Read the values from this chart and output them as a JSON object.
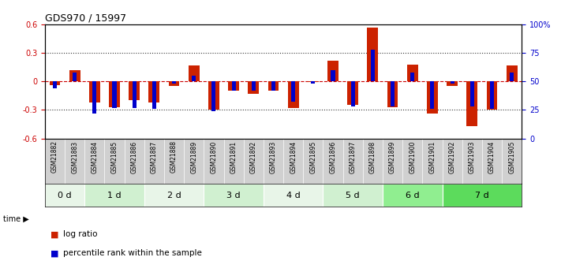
{
  "title": "GDS970 / 15997",
  "samples": [
    "GSM21882",
    "GSM21883",
    "GSM21884",
    "GSM21885",
    "GSM21886",
    "GSM21887",
    "GSM21888",
    "GSM21889",
    "GSM21890",
    "GSM21891",
    "GSM21892",
    "GSM21893",
    "GSM21894",
    "GSM21895",
    "GSM21896",
    "GSM21897",
    "GSM21898",
    "GSM21899",
    "GSM21900",
    "GSM21901",
    "GSM21902",
    "GSM21903",
    "GSM21904",
    "GSM21905"
  ],
  "log_ratio": [
    -0.04,
    0.12,
    -0.22,
    -0.27,
    -0.2,
    -0.22,
    -0.05,
    0.17,
    -0.3,
    -0.1,
    -0.13,
    -0.1,
    -0.28,
    -0.01,
    0.22,
    -0.25,
    0.57,
    -0.27,
    0.18,
    -0.34,
    -0.05,
    -0.47,
    -0.3,
    0.17
  ],
  "percentile_rank": [
    44,
    58,
    22,
    27,
    27,
    26,
    48,
    55,
    24,
    42,
    42,
    42,
    32,
    48,
    60,
    28,
    78,
    28,
    58,
    26,
    48,
    28,
    26,
    58
  ],
  "time_groups": [
    {
      "label": "0 d",
      "start": 0,
      "end": 2,
      "color": "#e8f5e8"
    },
    {
      "label": "1 d",
      "start": 2,
      "end": 5,
      "color": "#d0f0d0"
    },
    {
      "label": "2 d",
      "start": 5,
      "end": 8,
      "color": "#e8f5e8"
    },
    {
      "label": "3 d",
      "start": 8,
      "end": 11,
      "color": "#d0f0d0"
    },
    {
      "label": "4 d",
      "start": 11,
      "end": 14,
      "color": "#e8f5e8"
    },
    {
      "label": "5 d",
      "start": 14,
      "end": 17,
      "color": "#d0f0d0"
    },
    {
      "label": "6 d",
      "start": 17,
      "end": 20,
      "color": "#90ee90"
    },
    {
      "label": "7 d",
      "start": 20,
      "end": 24,
      "color": "#5cdb5c"
    }
  ],
  "ylim": [
    -0.6,
    0.6
  ],
  "yticks": [
    -0.6,
    -0.3,
    0.0,
    0.3,
    0.6
  ],
  "ytick_labels": [
    "-0.6",
    "-0.3",
    "0",
    "0.3",
    "0.6"
  ],
  "right_pct_ticks": [
    0,
    25,
    50,
    75,
    100
  ],
  "right_pct_labels": [
    "0",
    "25",
    "50",
    "75",
    "100%"
  ],
  "bar_color_red": "#cc2200",
  "bar_color_blue": "#0000cc",
  "hline_color": "#cc0000",
  "dotted_color": "#333333",
  "bg_color": "#ffffff",
  "label_bg": "#d0d0d0"
}
